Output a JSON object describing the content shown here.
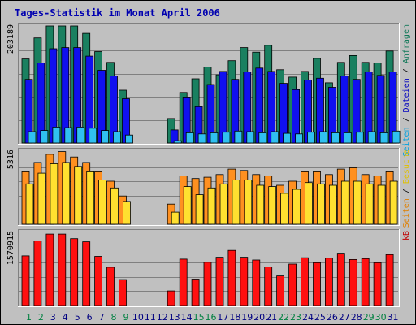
{
  "title": "Tages-Statistik im Monat April 2006",
  "chart_data": {
    "type": "bar",
    "title": "Tages-Statistik im Monat April 2006",
    "days": [
      1,
      2,
      3,
      4,
      5,
      6,
      7,
      8,
      9,
      10,
      11,
      12,
      13,
      14,
      15,
      16,
      17,
      18,
      19,
      20,
      21,
      22,
      23,
      24,
      25,
      26,
      27,
      28,
      29,
      30,
      31
    ],
    "day_colors": {
      "weekday": "#000080",
      "weekend": "#008040"
    },
    "weekend_days": [
      1,
      2,
      8,
      9,
      15,
      16,
      22,
      23,
      29,
      30
    ],
    "panels": [
      {
        "name": "hits",
        "ymax_label": "203189",
        "ymax": 203189,
        "legend": [
          {
            "text": "Seiten",
            "color": "#00a0e0"
          },
          {
            "text": " / ",
            "color": "#000000"
          },
          {
            "text": "Dateien",
            "color": "#0000c0"
          },
          {
            "text": " / ",
            "color": "#000000"
          },
          {
            "text": "Anfragen",
            "color": "#107858"
          }
        ],
        "series": [
          {
            "name": "Anfragen",
            "color": "#1a8060",
            "values": [
              148000,
              185000,
              206000,
              206000,
              206000,
              193000,
              161000,
              142000,
              93000,
              0,
              0,
              0,
              43000,
              89000,
              113000,
              134000,
              120000,
              145000,
              168000,
              160000,
              172000,
              129000,
              116000,
              126000,
              149000,
              106000,
              142000,
              154000,
              142000,
              141000,
              162000
            ]
          },
          {
            "name": "Dateien",
            "color": "#1010f0",
            "values": [
              112000,
              141000,
              166000,
              168000,
              168000,
              153000,
              128000,
              118000,
              78000,
              0,
              0,
              0,
              23000,
              81000,
              64000,
              103000,
              126000,
              112000,
              125000,
              132000,
              126000,
              105000,
              94000,
              111000,
              114000,
              98000,
              118000,
              112000,
              125000,
              119000,
              125000
            ]
          },
          {
            "name": "Seiten",
            "color": "#30c0f0",
            "values": [
              20000,
              22000,
              28000,
              27000,
              28000,
              26000,
              22000,
              20000,
              14000,
              0,
              0,
              0,
              4000,
              18000,
              16000,
              18000,
              19000,
              21000,
              20000,
              18000,
              20000,
              17000,
              16000,
              19000,
              20000,
              18000,
              18000,
              19000,
              20000,
              18000,
              21000
            ]
          }
        ]
      },
      {
        "name": "visits",
        "ymax_label": "5316",
        "ymax": 5316,
        "legend": [
          {
            "text": "Seiten",
            "color": "#e08000"
          },
          {
            "text": " / ",
            "color": "#000000"
          },
          {
            "text": "Besuche",
            "color": "#e0c000"
          }
        ],
        "series": [
          {
            "name": "Seiten",
            "color": "#ff9020",
            "values": [
              3900,
              4600,
              5200,
              5400,
              5000,
              4600,
              3900,
              3200,
              2100,
              0,
              0,
              0,
              1500,
              3600,
              3400,
              3500,
              3700,
              4100,
              4000,
              3700,
              3600,
              2900,
              3200,
              3900,
              3900,
              3700,
              4100,
              4200,
              3700,
              3600,
              3900
            ]
          },
          {
            "name": "Besuche",
            "color": "#ffe030",
            "values": [
              3000,
              3800,
              4500,
              4600,
              4300,
              3900,
              3300,
              2700,
              1700,
              0,
              0,
              0,
              900,
              2800,
              2200,
              2700,
              3000,
              3300,
              3300,
              2900,
              2800,
              2300,
              2600,
              3100,
              3000,
              2900,
              3200,
              3200,
              3000,
              2900,
              3200
            ]
          }
        ]
      },
      {
        "name": "kb",
        "ymax_label": "1570915",
        "ymax": 1570915,
        "legend": [
          {
            "text": "kB",
            "color": "#c00000"
          }
        ],
        "series": [
          {
            "name": "kB",
            "color": "#ff1010",
            "values": [
              1090000,
              1420000,
              1570000,
              1570000,
              1470000,
              1400000,
              1080000,
              840000,
              570000,
              0,
              0,
              0,
              320000,
              1020000,
              580000,
              950000,
              1060000,
              1210000,
              1060000,
              1000000,
              850000,
              650000,
              910000,
              1050000,
              940000,
              1040000,
              1150000,
              1010000,
              1030000,
              940000,
              1120000
            ]
          }
        ]
      }
    ]
  }
}
